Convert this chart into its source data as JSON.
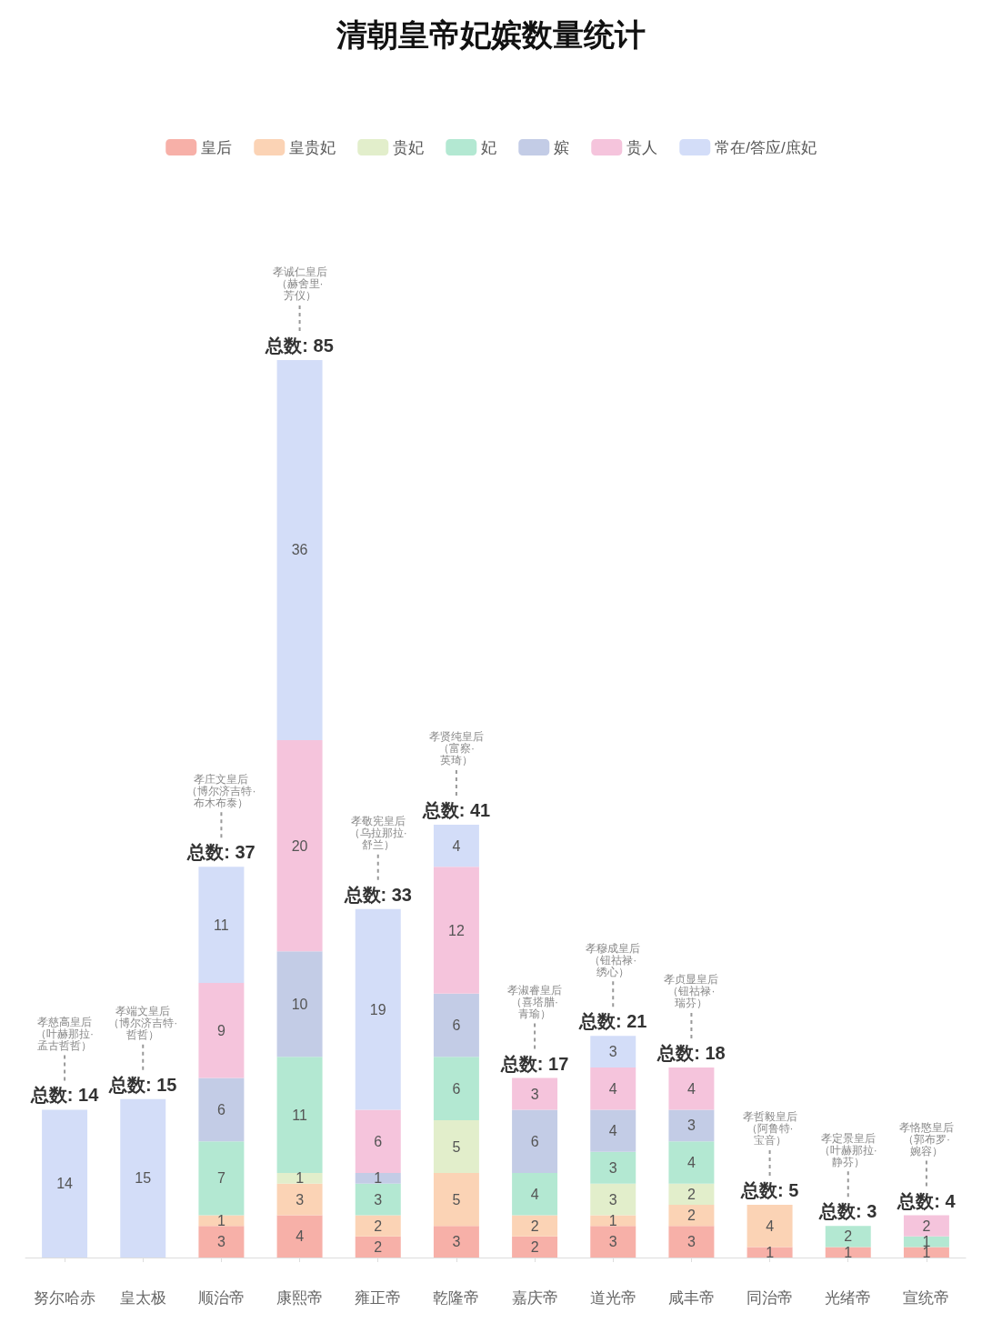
{
  "chart_data": {
    "type": "bar",
    "title": "清朝皇帝妃嫔数量统计",
    "stacked": true,
    "data_labels": true,
    "legend": "top",
    "categories": [
      "努尔哈赤",
      "皇太极",
      "顺治帝",
      "康熙帝",
      "雍正帝",
      "乾隆帝",
      "嘉庆帝",
      "道光帝",
      "咸丰帝",
      "同治帝",
      "光绪帝",
      "宣统帝"
    ],
    "series": [
      {
        "name": "皇后",
        "color": "#f7b0a8",
        "values": [
          null,
          null,
          3,
          4,
          2,
          3,
          2,
          3,
          3,
          1,
          1,
          1
        ]
      },
      {
        "name": "皇贵妃",
        "color": "#fbd3b5",
        "values": [
          null,
          null,
          1,
          3,
          2,
          5,
          2,
          1,
          2,
          4,
          null,
          null
        ]
      },
      {
        "name": "贵妃",
        "color": "#e2eecb",
        "values": [
          null,
          null,
          null,
          1,
          null,
          5,
          null,
          3,
          2,
          null,
          null,
          null
        ]
      },
      {
        "name": "妃",
        "color": "#b3e8d2",
        "values": [
          null,
          null,
          7,
          11,
          3,
          6,
          4,
          3,
          4,
          null,
          2,
          1
        ]
      },
      {
        "name": "嫔",
        "color": "#c3cce6",
        "values": [
          null,
          null,
          6,
          10,
          1,
          6,
          6,
          4,
          3,
          null,
          null,
          null
        ]
      },
      {
        "name": "贵人",
        "color": "#f5c4dc",
        "values": [
          null,
          null,
          9,
          20,
          6,
          12,
          3,
          4,
          4,
          null,
          null,
          2
        ]
      },
      {
        "name": "常在/答应/庶妃",
        "color": "#d3ddf8",
        "values": [
          14,
          15,
          11,
          36,
          19,
          4,
          null,
          3,
          null,
          null,
          null,
          null
        ]
      }
    ],
    "totals": [
      "总数: 14",
      "总数: 15",
      "总数: 37",
      "总数: 85",
      "总数: 33",
      "总数: 41",
      "总数: 17",
      "总数: 21",
      "总数: 18",
      "总数: 5",
      "总数: 3",
      "总数: 4"
    ],
    "annotations": [
      "孝慈高皇后（叶赫那拉·孟古哲哲）",
      "孝端文皇后（博尔济吉特·哲哲）",
      "孝庄文皇后（博尔济吉特·布木布泰）",
      "孝诚仁皇后（赫舍里·芳仪）",
      "孝敬宪皇后（乌拉那拉·舒兰）",
      "孝贤纯皇后（富察·英琦）",
      "孝淑睿皇后（喜塔腊·青瑜）",
      "孝穆成皇后（钮祜禄·绣心）",
      "孝贞显皇后（钮祜禄·瑞芬）",
      "孝哲毅皇后（阿鲁特·宝音）",
      "孝定景皇后（叶赫那拉·静芬）",
      "孝恪愍皇后（郭布罗·婉容）"
    ]
  }
}
